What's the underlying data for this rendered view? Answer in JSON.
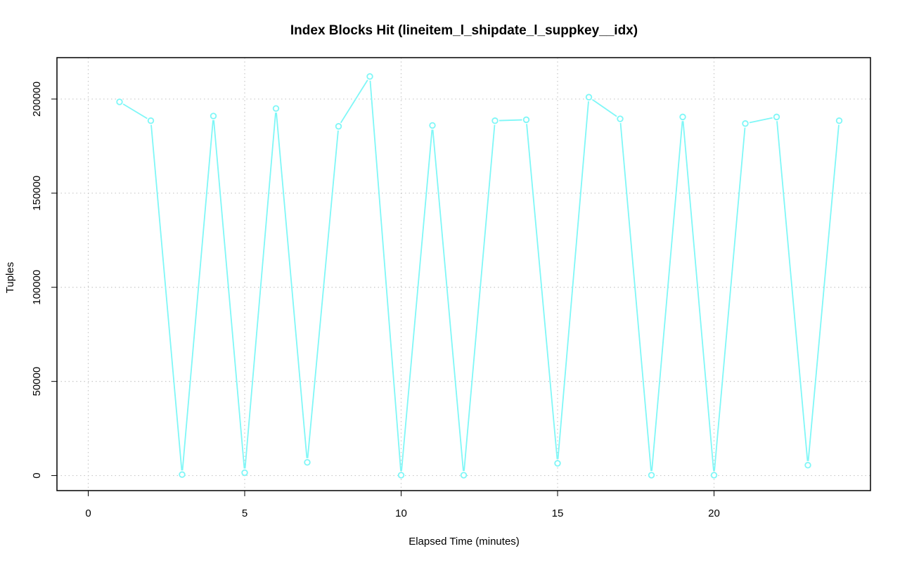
{
  "chart_data": {
    "type": "line",
    "title": "Index Blocks Hit (lineitem_l_shipdate_l_suppkey__idx)",
    "xlabel": "Elapsed Time (minutes)",
    "ylabel": "Tuples",
    "xlim": [
      -1,
      25
    ],
    "ylim": [
      -8000,
      222000
    ],
    "x_ticks": [
      0,
      5,
      10,
      15,
      20
    ],
    "x_tick_labels": [
      "0",
      "5",
      "10",
      "15",
      "20"
    ],
    "y_ticks": [
      0,
      50000,
      100000,
      150000,
      200000
    ],
    "y_tick_labels": [
      "0",
      "50000",
      "100000",
      "150000",
      "200000"
    ],
    "grid": true,
    "legend": "none",
    "series": [
      {
        "color": "#7ff7f7",
        "marker": "open-circle",
        "x": [
          1,
          2,
          3,
          4,
          5,
          6,
          7,
          8,
          9,
          10,
          11,
          12,
          13,
          14,
          15,
          16,
          17,
          18,
          19,
          20,
          21,
          22,
          23,
          24
        ],
        "y": [
          198500,
          188500,
          500,
          191000,
          1500,
          195000,
          7000,
          185500,
          212000,
          200,
          186000,
          200,
          188500,
          189000,
          6500,
          201000,
          189500,
          200,
          190500,
          200,
          187000,
          190500,
          5500,
          188500
        ]
      }
    ]
  }
}
